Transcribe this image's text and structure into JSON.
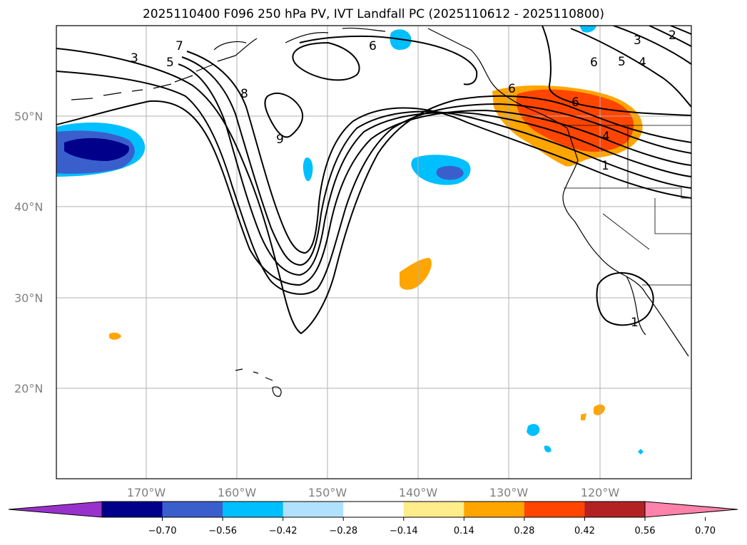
{
  "title": "2025110400 F096 250 hPa PV, IVT Landfall PC (2025110612 - 2025110800)",
  "map": {
    "lat_labels": [
      "50°N",
      "40°N",
      "30°N",
      "20°N"
    ],
    "lon_labels": [
      "170°W",
      "160°W",
      "150°W",
      "140°W",
      "130°W",
      "120°W"
    ],
    "contour_labels": [
      "3",
      "5",
      "7",
      "8",
      "9",
      "6",
      "6",
      "3",
      "2",
      "6",
      "5",
      "4",
      "6",
      "4",
      "1",
      "1"
    ]
  },
  "colorbar": {
    "ticks": [
      "−0.70",
      "−0.56",
      "−0.42",
      "−0.28",
      "−0.14",
      "0.14",
      "0.28",
      "0.42",
      "0.56",
      "0.70"
    ],
    "colors": [
      "#9932cc",
      "#00008b",
      "#3a5fcd",
      "#00bfff",
      "#b0e2ff",
      "#ffffff",
      "#ffec8b",
      "#ffa500",
      "#ff4500",
      "#b22222",
      "#ff82ab"
    ]
  }
}
